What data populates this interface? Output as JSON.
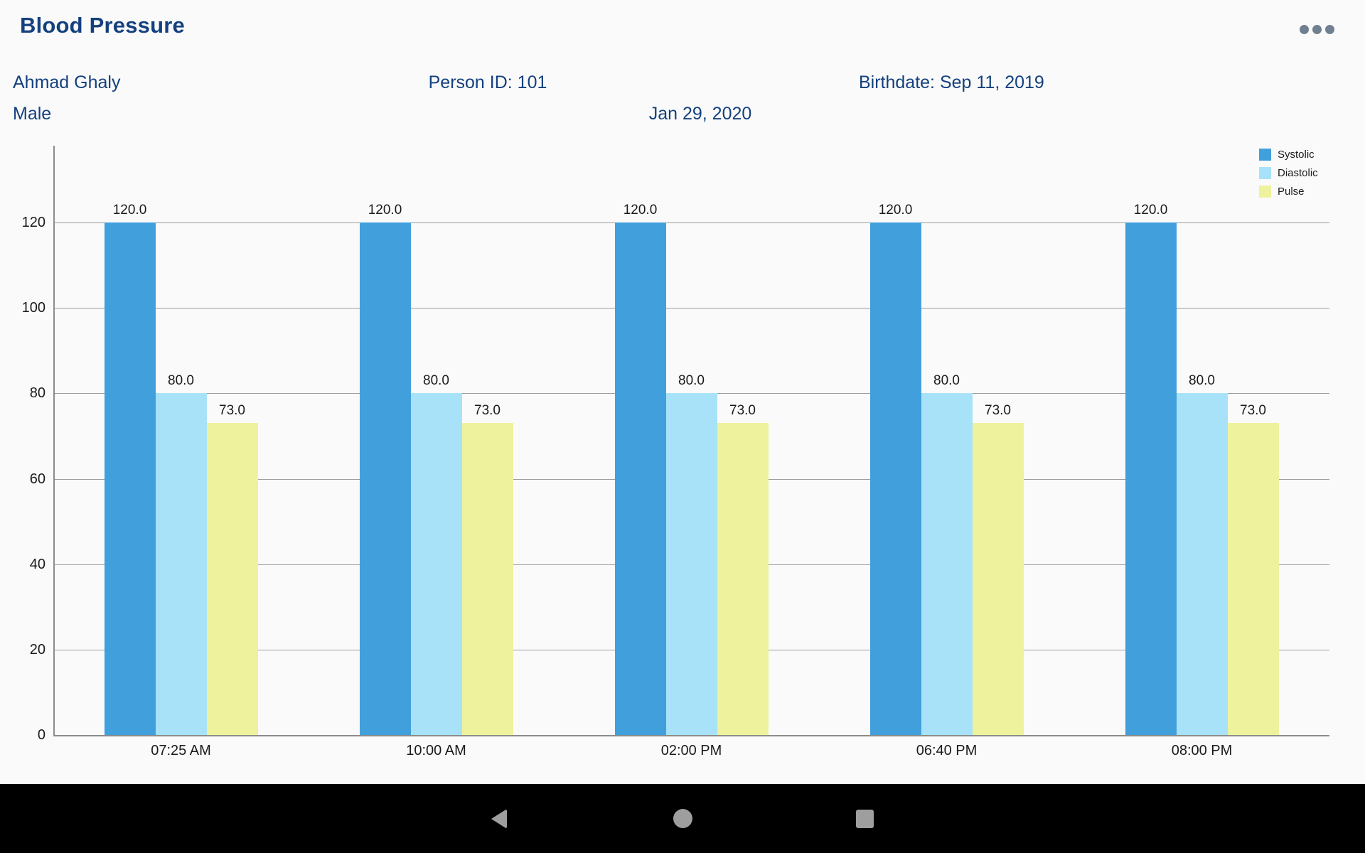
{
  "header": {
    "title": "Blood Pressure",
    "menu_icon": "ellipsis-icon"
  },
  "patient": {
    "name": "Ahmad Ghaly",
    "person_id": "Person ID: 101",
    "birthdate": "Birthdate: Sep 11, 2019",
    "gender": "Male",
    "date": "Jan 29, 2020"
  },
  "chart_data": {
    "type": "bar",
    "title": "",
    "categories": [
      "07:25 AM",
      "10:00 AM",
      "02:00 PM",
      "06:40 PM",
      "08:00 PM"
    ],
    "series": [
      {
        "name": "Systolic",
        "color": "#41a0dc",
        "values": [
          120.0,
          120.0,
          120.0,
          120.0,
          120.0
        ]
      },
      {
        "name": "Diastolic",
        "color": "#a8e2f9",
        "values": [
          80.0,
          80.0,
          80.0,
          80.0,
          80.0
        ]
      },
      {
        "name": "Pulse",
        "color": "#eef29d",
        "values": [
          73.0,
          73.0,
          73.0,
          73.0,
          73.0
        ]
      }
    ],
    "value_labels": true,
    "value_decimals": 1,
    "y_ticks": [
      0,
      20,
      40,
      60,
      80,
      100,
      120
    ],
    "ylim": [
      0,
      138
    ],
    "grid": true,
    "legend_position": "top-right"
  },
  "nav_bar": {
    "buttons": [
      {
        "name": "back",
        "icon": "back-icon"
      },
      {
        "name": "home",
        "icon": "home-icon"
      },
      {
        "name": "recents",
        "icon": "recents-icon"
      }
    ]
  },
  "colors": {
    "title_text": "#14407e",
    "info_text": "#14407e",
    "background": "#fafafa",
    "grid": "#9e9e9e",
    "axis": "#8c8c8c",
    "label_text": "#1b1b1b",
    "menu_icon": "#708090",
    "nav_bar": "#000000",
    "nav_icon": "#9e9e9e"
  }
}
